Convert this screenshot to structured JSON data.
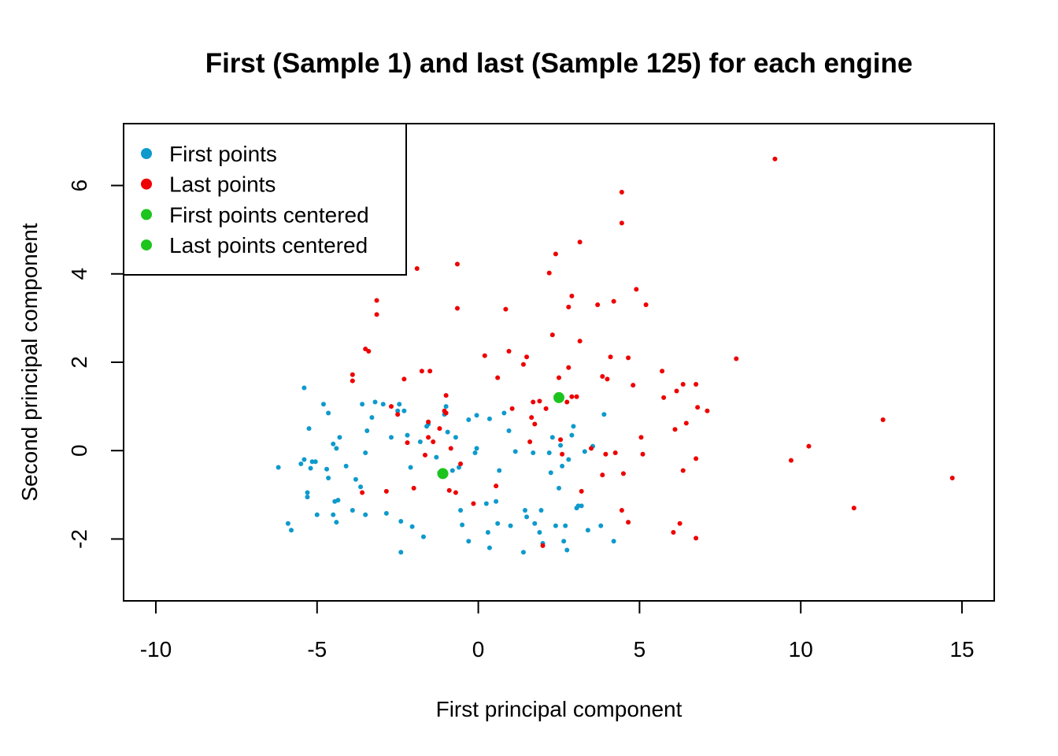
{
  "chart_data": {
    "type": "scatter",
    "title": "First (Sample 1) and last (Sample 125) for each engine",
    "xlabel": "First principal component",
    "ylabel": "Second principal component",
    "xlim": [
      -11,
      16
    ],
    "ylim": [
      -3.4,
      7.4
    ],
    "x_ticks": [
      -10,
      -5,
      0,
      5,
      10,
      15
    ],
    "x_tick_labels": [
      "-10",
      "-5",
      "0",
      "5",
      "10",
      "15"
    ],
    "y_ticks": [
      -2,
      0,
      2,
      4,
      6
    ],
    "y_tick_labels": [
      "-2",
      "0",
      "2",
      "4",
      "6"
    ],
    "grid": false,
    "legend_position": "top-left",
    "legend": [
      {
        "label": "First points",
        "color": "#0E9ACC"
      },
      {
        "label": "Last points",
        "color": "#EE0000"
      },
      {
        "label": "First points centered",
        "color": "#1DC41D"
      },
      {
        "label": "Last points centered",
        "color": "#1DC41D"
      }
    ],
    "series": [
      {
        "name": "First points",
        "color": "#0E9ACC",
        "marker": "small-dot",
        "points": [
          [
            -6.2,
            -0.38
          ],
          [
            -5.9,
            -1.65
          ],
          [
            -5.8,
            -1.8
          ],
          [
            -5.5,
            -0.3
          ],
          [
            -5.4,
            1.42
          ],
          [
            -5.4,
            -0.2
          ],
          [
            -5.3,
            -0.95
          ],
          [
            -5.3,
            -1.05
          ],
          [
            -5.25,
            0.5
          ],
          [
            -5.2,
            -0.4
          ],
          [
            -5.15,
            -0.25
          ],
          [
            -5.05,
            -0.25
          ],
          [
            -5.0,
            -1.45
          ],
          [
            -4.8,
            1.05
          ],
          [
            -4.7,
            -0.42
          ],
          [
            -4.65,
            0.85
          ],
          [
            -4.65,
            -0.62
          ],
          [
            -4.5,
            -1.45
          ],
          [
            -4.5,
            0.15
          ],
          [
            -4.45,
            -1.15
          ],
          [
            -4.4,
            -1.62
          ],
          [
            -4.4,
            0.05
          ],
          [
            -4.35,
            -1.12
          ],
          [
            -4.3,
            0.3
          ],
          [
            -4.1,
            -0.35
          ],
          [
            -3.9,
            -1.35
          ],
          [
            -3.8,
            -0.65
          ],
          [
            -3.65,
            -0.82
          ],
          [
            -3.6,
            1.05
          ],
          [
            -3.5,
            -1.45
          ],
          [
            -3.5,
            -0.05
          ],
          [
            -3.45,
            0.45
          ],
          [
            -3.3,
            0.75
          ],
          [
            -3.2,
            1.1
          ],
          [
            -2.95,
            1.05
          ],
          [
            -2.85,
            -1.42
          ],
          [
            -2.7,
            0.3
          ],
          [
            -2.5,
            0.9
          ],
          [
            -2.45,
            1.05
          ],
          [
            -2.4,
            -1.6
          ],
          [
            -2.4,
            -2.3
          ],
          [
            -2.3,
            0.9
          ],
          [
            -2.2,
            0.35
          ],
          [
            -2.1,
            -0.38
          ],
          [
            -2.05,
            -1.72
          ],
          [
            -1.8,
            0.2
          ],
          [
            -1.7,
            -1.95
          ],
          [
            -1.6,
            0.55
          ],
          [
            -1.55,
            0.6
          ],
          [
            -1.3,
            -0.15
          ],
          [
            -1.2,
            -0.5
          ],
          [
            -1.05,
            0.82
          ],
          [
            -1.0,
            1.0
          ],
          [
            -0.95,
            0.42
          ],
          [
            -0.8,
            -0.45
          ],
          [
            -0.7,
            0.3
          ],
          [
            -0.6,
            -0.38
          ],
          [
            -0.55,
            -1.35
          ],
          [
            -0.5,
            -1.68
          ],
          [
            -0.3,
            -2.05
          ],
          [
            -0.3,
            0.7
          ],
          [
            -0.1,
            -0.05
          ],
          [
            -0.05,
            0.05
          ],
          [
            -0.05,
            0.8
          ],
          [
            0.25,
            -1.2
          ],
          [
            0.3,
            -1.85
          ],
          [
            0.35,
            0.72
          ],
          [
            0.35,
            -2.2
          ],
          [
            0.55,
            -1.15
          ],
          [
            0.6,
            -1.65
          ],
          [
            0.65,
            -0.45
          ],
          [
            0.8,
            0.85
          ],
          [
            0.95,
            0.45
          ],
          [
            1.0,
            -1.7
          ],
          [
            1.15,
            -0.02
          ],
          [
            1.4,
            -2.3
          ],
          [
            1.45,
            -1.35
          ],
          [
            1.5,
            -1.5
          ],
          [
            1.7,
            -0.05
          ],
          [
            1.75,
            -1.65
          ],
          [
            1.9,
            -1.85
          ],
          [
            1.95,
            -1.35
          ],
          [
            2.0,
            -2.1
          ],
          [
            2.2,
            -0.05
          ],
          [
            2.25,
            -0.5
          ],
          [
            2.3,
            0.3
          ],
          [
            2.4,
            -1.7
          ],
          [
            2.5,
            -0.85
          ],
          [
            2.55,
            0.12
          ],
          [
            2.6,
            -0.35
          ],
          [
            2.65,
            -2.05
          ],
          [
            2.7,
            -1.7
          ],
          [
            2.75,
            -2.25
          ],
          [
            2.8,
            -0.2
          ],
          [
            2.9,
            0.35
          ],
          [
            2.95,
            0.55
          ],
          [
            3.05,
            -1.3
          ],
          [
            3.1,
            -1.25
          ],
          [
            3.2,
            -1.25
          ],
          [
            3.3,
            -0.02
          ],
          [
            3.4,
            -1.8
          ],
          [
            3.55,
            0.1
          ],
          [
            3.8,
            -1.7
          ],
          [
            3.9,
            0.82
          ],
          [
            4.2,
            -2.05
          ]
        ]
      },
      {
        "name": "Last points",
        "color": "#EE0000",
        "marker": "small-dot",
        "points": [
          [
            -3.9,
            1.72
          ],
          [
            -3.9,
            1.58
          ],
          [
            -3.6,
            -0.95
          ],
          [
            -3.5,
            2.3
          ],
          [
            -3.4,
            2.25
          ],
          [
            -3.15,
            3.4
          ],
          [
            -3.15,
            3.08
          ],
          [
            -2.85,
            -0.92
          ],
          [
            -2.7,
            1.0
          ],
          [
            -2.5,
            0.82
          ],
          [
            -2.3,
            1.62
          ],
          [
            -2.2,
            0.18
          ],
          [
            -2.0,
            -0.85
          ],
          [
            -1.9,
            4.12
          ],
          [
            -1.75,
            1.8
          ],
          [
            -1.65,
            -0.1
          ],
          [
            -1.55,
            0.65
          ],
          [
            -1.55,
            0.3
          ],
          [
            -1.5,
            1.8
          ],
          [
            -1.4,
            0.2
          ],
          [
            -1.2,
            0.5
          ],
          [
            -1.05,
            0.9
          ],
          [
            -1.0,
            1.25
          ],
          [
            -1.0,
            0.85
          ],
          [
            -0.9,
            -0.9
          ],
          [
            -0.85,
            0.05
          ],
          [
            -0.7,
            -0.95
          ],
          [
            -0.65,
            4.22
          ],
          [
            -0.65,
            3.22
          ],
          [
            -0.55,
            -0.3
          ],
          [
            -0.15,
            -1.2
          ],
          [
            0.2,
            2.15
          ],
          [
            0.6,
            1.65
          ],
          [
            0.55,
            -0.8
          ],
          [
            0.85,
            3.2
          ],
          [
            0.95,
            2.25
          ],
          [
            1.05,
            0.95
          ],
          [
            1.4,
            1.95
          ],
          [
            1.5,
            2.12
          ],
          [
            1.6,
            0.2
          ],
          [
            1.65,
            0.75
          ],
          [
            1.7,
            1.1
          ],
          [
            1.75,
            0.6
          ],
          [
            1.9,
            1.12
          ],
          [
            2.0,
            -2.15
          ],
          [
            2.1,
            0.95
          ],
          [
            2.2,
            4.02
          ],
          [
            2.3,
            2.62
          ],
          [
            2.4,
            4.45
          ],
          [
            2.5,
            1.65
          ],
          [
            2.55,
            0.25
          ],
          [
            2.6,
            -0.08
          ],
          [
            2.75,
            1.1
          ],
          [
            2.8,
            3.25
          ],
          [
            2.8,
            1.88
          ],
          [
            2.9,
            3.5
          ],
          [
            2.9,
            1.22
          ],
          [
            3.05,
            1.22
          ],
          [
            3.15,
            4.72
          ],
          [
            3.15,
            2.48
          ],
          [
            3.2,
            -0.92
          ],
          [
            3.5,
            0.05
          ],
          [
            3.7,
            3.3
          ],
          [
            3.85,
            -0.55
          ],
          [
            3.85,
            1.68
          ],
          [
            3.95,
            -0.08
          ],
          [
            4.0,
            1.62
          ],
          [
            4.1,
            2.12
          ],
          [
            4.2,
            3.38
          ],
          [
            4.25,
            -0.05
          ],
          [
            4.45,
            5.85
          ],
          [
            4.45,
            5.15
          ],
          [
            4.45,
            -1.35
          ],
          [
            4.5,
            -0.52
          ],
          [
            4.65,
            2.1
          ],
          [
            4.65,
            -1.62
          ],
          [
            4.8,
            1.48
          ],
          [
            4.9,
            3.65
          ],
          [
            5.05,
            0.3
          ],
          [
            5.1,
            -0.08
          ],
          [
            5.2,
            3.3
          ],
          [
            5.7,
            1.8
          ],
          [
            5.75,
            1.2
          ],
          [
            6.05,
            -1.85
          ],
          [
            6.1,
            0.48
          ],
          [
            6.15,
            1.35
          ],
          [
            6.25,
            -1.65
          ],
          [
            6.35,
            1.5
          ],
          [
            6.35,
            -0.45
          ],
          [
            6.45,
            0.62
          ],
          [
            6.75,
            1.5
          ],
          [
            6.75,
            -0.18
          ],
          [
            6.75,
            -1.98
          ],
          [
            6.8,
            0.98
          ],
          [
            7.1,
            0.9
          ],
          [
            8.0,
            2.08
          ],
          [
            9.2,
            6.6
          ],
          [
            9.7,
            -0.22
          ],
          [
            10.25,
            0.1
          ],
          [
            11.65,
            -1.3
          ],
          [
            12.55,
            0.7
          ],
          [
            14.7,
            -0.62
          ]
        ]
      },
      {
        "name": "First points centered",
        "color": "#1DC41D",
        "marker": "large-dot",
        "points": [
          [
            -1.1,
            -0.52
          ]
        ]
      },
      {
        "name": "Last points centered",
        "color": "#1DC41D",
        "marker": "large-dot",
        "points": [
          [
            2.5,
            1.2
          ]
        ]
      }
    ]
  }
}
